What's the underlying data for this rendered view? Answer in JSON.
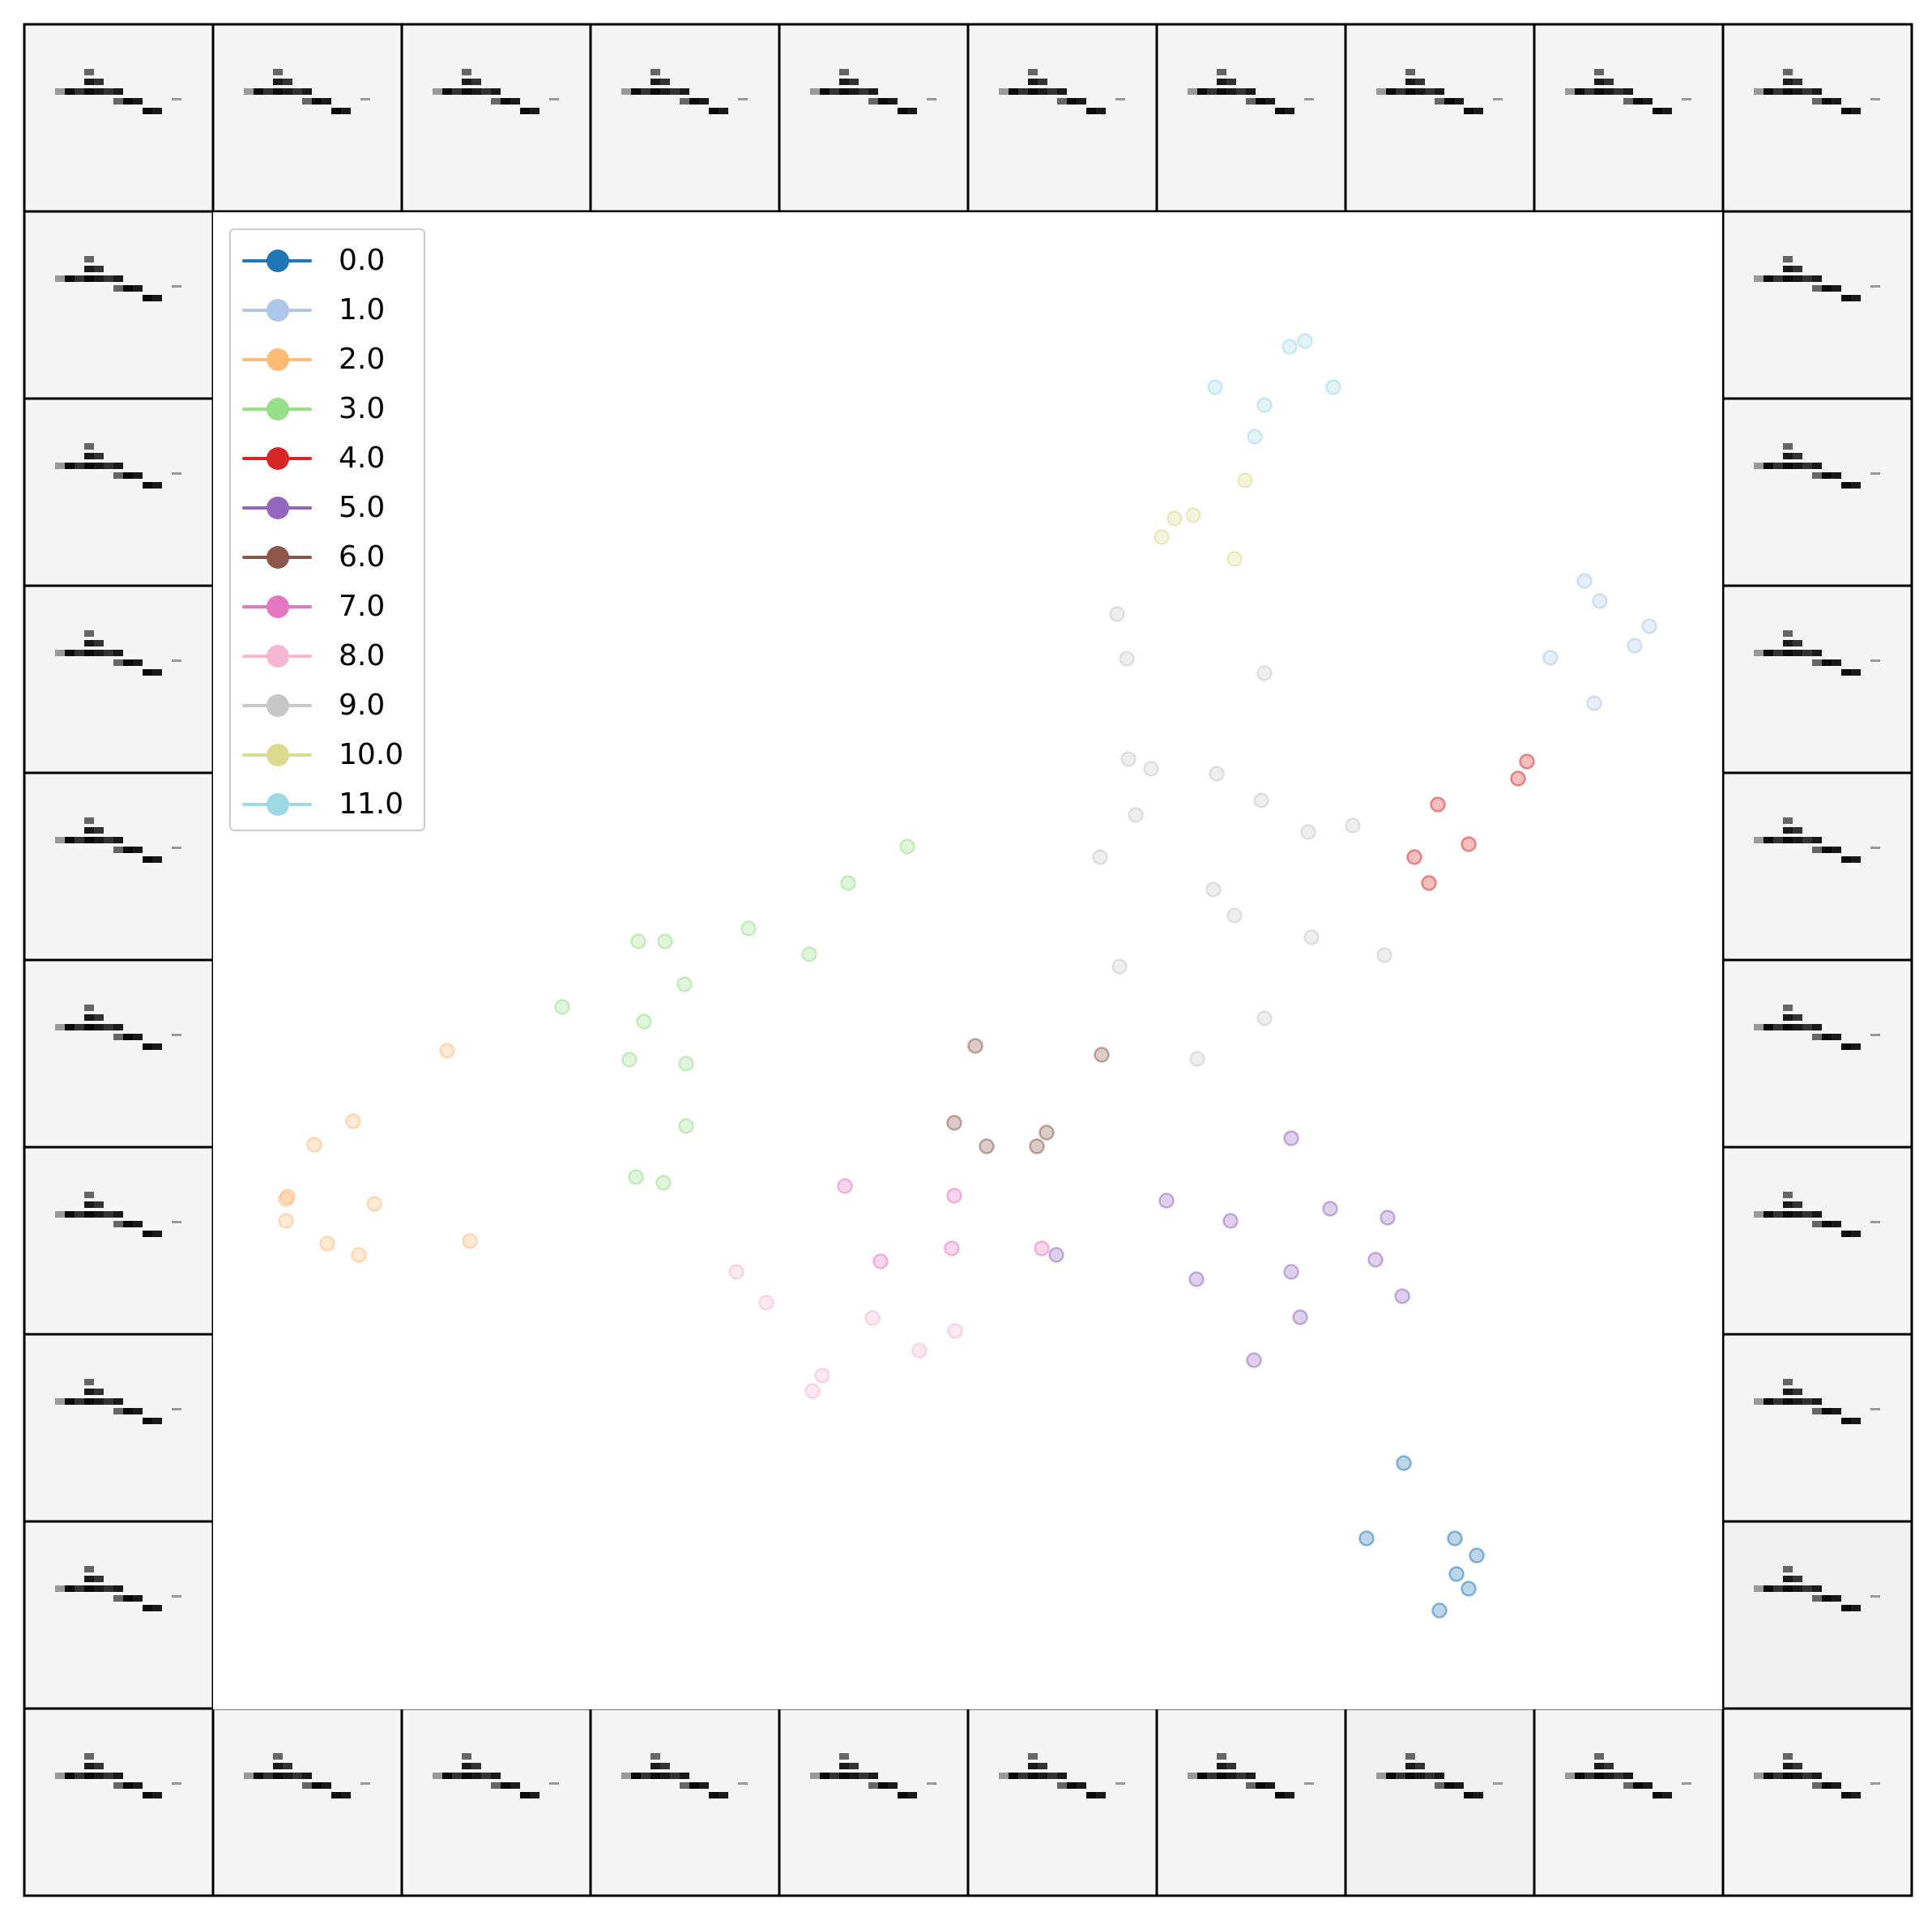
{
  "chart_data": {
    "type": "scatter",
    "title": "",
    "xlabel": "",
    "ylabel": "",
    "grid": false,
    "legend_placement": "upper-left",
    "thumbnail_frame": "10x10 grid of image tiles surrounding the scatter plot",
    "marker_alpha": 0.3,
    "colors": {
      "0.0": "#1f77b4",
      "1.0": "#aec7e8",
      "2.0": "#ffbb78",
      "3.0": "#98df8a",
      "4.0": "#d62728",
      "5.0": "#9467bd",
      "6.0": "#8c564b",
      "7.0": "#e377c2",
      "8.0": "#f7b6d2",
      "9.0": "#c7c7c7",
      "10.0": "#dbdb8d",
      "11.0": "#9edae5"
    },
    "legend": [
      "0.0",
      "1.0",
      "2.0",
      "3.0",
      "4.0",
      "5.0",
      "6.0",
      "7.0",
      "8.0",
      "9.0",
      "10.0",
      "11.0"
    ],
    "series": [
      {
        "name": "0.0",
        "points": [
          [
            1733,
            1806
          ],
          [
            1687,
            1899
          ],
          [
            1796,
            1899
          ],
          [
            1823,
            1920
          ],
          [
            1798,
            1943
          ],
          [
            1813,
            1961
          ],
          [
            1777,
            1988
          ]
        ]
      },
      {
        "name": "1.0",
        "points": [
          [
            1956,
            717
          ],
          [
            1975,
            742
          ],
          [
            2036,
            773
          ],
          [
            2018,
            797
          ],
          [
            1914,
            812
          ],
          [
            1968,
            868
          ]
        ]
      },
      {
        "name": "2.0",
        "points": [
          [
            552,
            1297
          ],
          [
            436,
            1384
          ],
          [
            388,
            1413
          ],
          [
            355,
            1477
          ],
          [
            353,
            1480
          ],
          [
            462,
            1486
          ],
          [
            353,
            1507
          ],
          [
            404,
            1535
          ],
          [
            580,
            1532
          ],
          [
            443,
            1549
          ]
        ]
      },
      {
        "name": "3.0",
        "points": [
          [
            1120,
            1045
          ],
          [
            1047,
            1090
          ],
          [
            924,
            1146
          ],
          [
            788,
            1162
          ],
          [
            821,
            1162
          ],
          [
            999,
            1178
          ],
          [
            845,
            1215
          ],
          [
            694,
            1243
          ],
          [
            795,
            1261
          ],
          [
            777,
            1308
          ],
          [
            847,
            1313
          ],
          [
            847,
            1390
          ],
          [
            785,
            1453
          ],
          [
            819,
            1460
          ]
        ]
      },
      {
        "name": "4.0",
        "points": [
          [
            1885,
            940
          ],
          [
            1874,
            961
          ],
          [
            1775,
            993
          ],
          [
            1813,
            1042
          ],
          [
            1746,
            1058
          ],
          [
            1764,
            1090
          ]
        ]
      },
      {
        "name": "5.0",
        "points": [
          [
            1594,
            1405
          ],
          [
            1440,
            1482
          ],
          [
            1642,
            1492
          ],
          [
            1519,
            1507
          ],
          [
            1713,
            1503
          ],
          [
            1304,
            1549
          ],
          [
            1698,
            1555
          ],
          [
            1594,
            1570
          ],
          [
            1477,
            1579
          ],
          [
            1731,
            1600
          ],
          [
            1605,
            1626
          ],
          [
            1548,
            1679
          ]
        ]
      },
      {
        "name": "6.0",
        "points": [
          [
            1204,
            1291
          ],
          [
            1360,
            1302
          ],
          [
            1178,
            1386
          ],
          [
            1292,
            1398
          ],
          [
            1218,
            1415
          ],
          [
            1280,
            1415
          ]
        ]
      },
      {
        "name": "7.0",
        "points": [
          [
            1043,
            1464
          ],
          [
            1178,
            1476
          ],
          [
            1087,
            1557
          ],
          [
            1175,
            1541
          ],
          [
            1286,
            1541
          ]
        ]
      },
      {
        "name": "8.0",
        "points": [
          [
            909,
            1570
          ],
          [
            946,
            1608
          ],
          [
            1077,
            1627
          ],
          [
            1179,
            1643
          ],
          [
            1135,
            1667
          ],
          [
            1015,
            1698
          ],
          [
            1003,
            1717
          ]
        ]
      },
      {
        "name": "9.0",
        "points": [
          [
            1379,
            758
          ],
          [
            1391,
            813
          ],
          [
            1561,
            831
          ],
          [
            1393,
            937
          ],
          [
            1421,
            949
          ],
          [
            1502,
            955
          ],
          [
            1557,
            988
          ],
          [
            1402,
            1006
          ],
          [
            1615,
            1027
          ],
          [
            1670,
            1019
          ],
          [
            1358,
            1058
          ],
          [
            1498,
            1098
          ],
          [
            1524,
            1130
          ],
          [
            1619,
            1157
          ],
          [
            1709,
            1179
          ],
          [
            1382,
            1193
          ],
          [
            1561,
            1257
          ],
          [
            1478,
            1307
          ]
        ]
      },
      {
        "name": "10.0",
        "points": [
          [
            1537,
            593
          ],
          [
            1450,
            640
          ],
          [
            1473,
            636
          ],
          [
            1434,
            663
          ],
          [
            1524,
            690
          ]
        ]
      },
      {
        "name": "11.0",
        "points": [
          [
            1592,
            428
          ],
          [
            1611,
            421
          ],
          [
            1500,
            478
          ],
          [
            1646,
            478
          ],
          [
            1561,
            500
          ],
          [
            1549,
            539
          ]
        ]
      }
    ]
  }
}
